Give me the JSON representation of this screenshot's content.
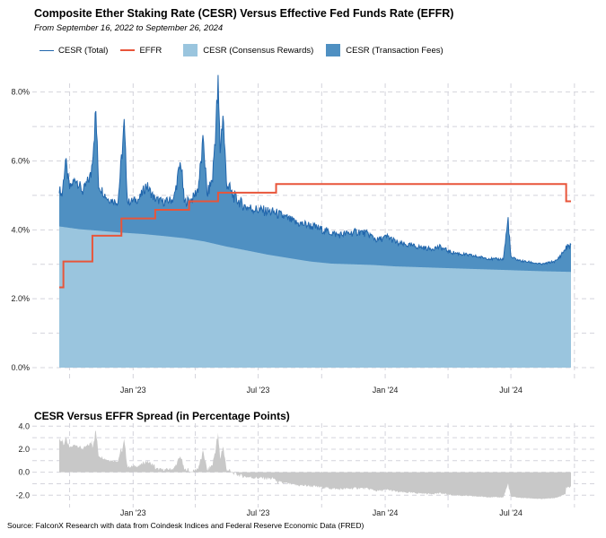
{
  "chart_data": [
    {
      "type": "area",
      "title": "Composite Ether Staking Rate (CESR) Versus Effective Fed Funds Rate (EFFR)",
      "subtitle": "From September 16, 2022 to September 26, 2024",
      "x_range": [
        "2022-09-16",
        "2024-09-26"
      ],
      "ylim": [
        0,
        8.2
      ],
      "y_ticks": [
        "0.0%",
        "2.0%",
        "4.0%",
        "6.0%",
        "8.0%"
      ],
      "x_ticks": [
        {
          "date": "2023-01-01",
          "label": "Jan '23"
        },
        {
          "date": "2023-07-01",
          "label": "Jul '23"
        },
        {
          "date": "2024-01-01",
          "label": "Jan '24"
        },
        {
          "date": "2024-07-01",
          "label": "Jul '24"
        }
      ],
      "grid": true,
      "legend": {
        "placement": "top-left",
        "entries": [
          {
            "label": "CESR (Total)",
            "kind": "line",
            "color": "#2166ac"
          },
          {
            "label": "EFFR",
            "kind": "line",
            "color": "#e8553a"
          },
          {
            "label": "CESR (Consensus Rewards)",
            "kind": "area",
            "color": "#9ac5de"
          },
          {
            "label": "CESR (Transaction Fees)",
            "kind": "area",
            "color": "#4f90c2"
          }
        ]
      },
      "colors": {
        "total": "#2166ac",
        "effr": "#e8553a",
        "consensus": "#9ac5de",
        "fees": "#4f90c2"
      },
      "series": [
        {
          "name": "CESR (Consensus Rewards)",
          "points": [
            [
              "2022-09-16",
              4.1
            ],
            [
              "2022-10-15",
              4.02
            ],
            [
              "2022-11-15",
              3.97
            ],
            [
              "2022-12-15",
              3.92
            ],
            [
              "2023-01-15",
              3.88
            ],
            [
              "2023-02-15",
              3.82
            ],
            [
              "2023-03-15",
              3.76
            ],
            [
              "2023-04-15",
              3.66
            ],
            [
              "2023-05-15",
              3.52
            ],
            [
              "2023-06-15",
              3.4
            ],
            [
              "2023-07-15",
              3.28
            ],
            [
              "2023-08-15",
              3.18
            ],
            [
              "2023-09-15",
              3.08
            ],
            [
              "2023-10-15",
              3.02
            ],
            [
              "2023-11-15",
              3.0
            ],
            [
              "2023-12-15",
              2.98
            ],
            [
              "2024-01-15",
              2.94
            ],
            [
              "2024-02-15",
              2.92
            ],
            [
              "2024-03-15",
              2.9
            ],
            [
              "2024-04-15",
              2.88
            ],
            [
              "2024-05-15",
              2.86
            ],
            [
              "2024-06-15",
              2.84
            ],
            [
              "2024-07-15",
              2.82
            ],
            [
              "2024-08-15",
              2.8
            ],
            [
              "2024-09-26",
              2.78
            ]
          ]
        },
        {
          "name": "CESR (Total)",
          "points": [
            [
              "2022-09-16",
              5.2
            ],
            [
              "2022-09-20",
              5.0
            ],
            [
              "2022-09-25",
              6.0
            ],
            [
              "2022-10-01",
              5.2
            ],
            [
              "2022-10-10",
              5.5
            ],
            [
              "2022-10-20",
              5.1
            ],
            [
              "2022-11-01",
              5.6
            ],
            [
              "2022-11-08",
              7.4
            ],
            [
              "2022-11-12",
              5.3
            ],
            [
              "2022-11-25",
              4.9
            ],
            [
              "2022-12-10",
              4.8
            ],
            [
              "2022-12-19",
              7.0
            ],
            [
              "2022-12-24",
              4.8
            ],
            [
              "2023-01-10",
              4.9
            ],
            [
              "2023-01-20",
              5.3
            ],
            [
              "2023-02-01",
              4.9
            ],
            [
              "2023-02-15",
              4.8
            ],
            [
              "2023-03-01",
              4.9
            ],
            [
              "2023-03-11",
              6.0
            ],
            [
              "2023-03-16",
              4.8
            ],
            [
              "2023-03-28",
              4.9
            ],
            [
              "2023-04-05",
              5.2
            ],
            [
              "2023-04-13",
              6.6
            ],
            [
              "2023-04-18",
              5.0
            ],
            [
              "2023-04-26",
              5.5
            ],
            [
              "2023-05-04",
              8.1
            ],
            [
              "2023-05-07",
              6.3
            ],
            [
              "2023-05-11",
              7.4
            ],
            [
              "2023-05-16",
              5.4
            ],
            [
              "2023-05-25",
              5.0
            ],
            [
              "2023-06-10",
              4.7
            ],
            [
              "2023-06-25",
              4.6
            ],
            [
              "2023-07-10",
              4.55
            ],
            [
              "2023-07-25",
              4.5
            ],
            [
              "2023-08-10",
              4.35
            ],
            [
              "2023-08-25",
              4.2
            ],
            [
              "2023-09-10",
              4.15
            ],
            [
              "2023-09-25",
              4.05
            ],
            [
              "2023-10-10",
              3.95
            ],
            [
              "2023-10-25",
              3.85
            ],
            [
              "2023-11-10",
              3.9
            ],
            [
              "2023-11-25",
              3.95
            ],
            [
              "2023-12-10",
              3.85
            ],
            [
              "2023-12-20",
              3.7
            ],
            [
              "2024-01-05",
              3.8
            ],
            [
              "2024-01-20",
              3.6
            ],
            [
              "2024-02-05",
              3.55
            ],
            [
              "2024-02-20",
              3.5
            ],
            [
              "2024-03-05",
              3.45
            ],
            [
              "2024-03-20",
              3.5
            ],
            [
              "2024-04-05",
              3.35
            ],
            [
              "2024-04-20",
              3.3
            ],
            [
              "2024-05-05",
              3.25
            ],
            [
              "2024-05-20",
              3.2
            ],
            [
              "2024-06-05",
              3.15
            ],
            [
              "2024-06-20",
              3.15
            ],
            [
              "2024-06-27",
              4.3
            ],
            [
              "2024-07-01",
              3.2
            ],
            [
              "2024-07-15",
              3.1
            ],
            [
              "2024-08-01",
              3.05
            ],
            [
              "2024-08-15",
              3.0
            ],
            [
              "2024-09-05",
              3.1
            ],
            [
              "2024-09-20",
              3.5
            ],
            [
              "2024-09-26",
              3.55
            ]
          ]
        },
        {
          "name": "EFFR",
          "points": [
            [
              "2022-09-16",
              2.33
            ],
            [
              "2022-09-22",
              3.08
            ],
            [
              "2022-11-03",
              3.83
            ],
            [
              "2022-12-15",
              4.33
            ],
            [
              "2023-02-02",
              4.58
            ],
            [
              "2023-03-23",
              4.83
            ],
            [
              "2023-05-04",
              5.08
            ],
            [
              "2023-07-27",
              5.33
            ],
            [
              "2024-09-19",
              4.83
            ],
            [
              "2024-09-26",
              4.83
            ]
          ]
        }
      ]
    },
    {
      "type": "area",
      "title": "CESR Versus EFFR Spread (in Percentage Points)",
      "ylim": [
        -2.6,
        4.1
      ],
      "y_ticks": [
        "-2.0",
        "0.0",
        "2.0",
        "4.0"
      ],
      "x_ticks": [
        {
          "date": "2023-01-01",
          "label": "Jan '23"
        },
        {
          "date": "2023-07-01",
          "label": "Jul '23"
        },
        {
          "date": "2024-01-01",
          "label": "Jan '24"
        },
        {
          "date": "2024-07-01",
          "label": "Jul '24"
        }
      ],
      "grid": true,
      "colors": {
        "spread": "#c8c8c8"
      }
    }
  ],
  "source": "Source: FalconX Research with data from Coindesk Indices and Federal Reserve Economic Data (FRED)"
}
